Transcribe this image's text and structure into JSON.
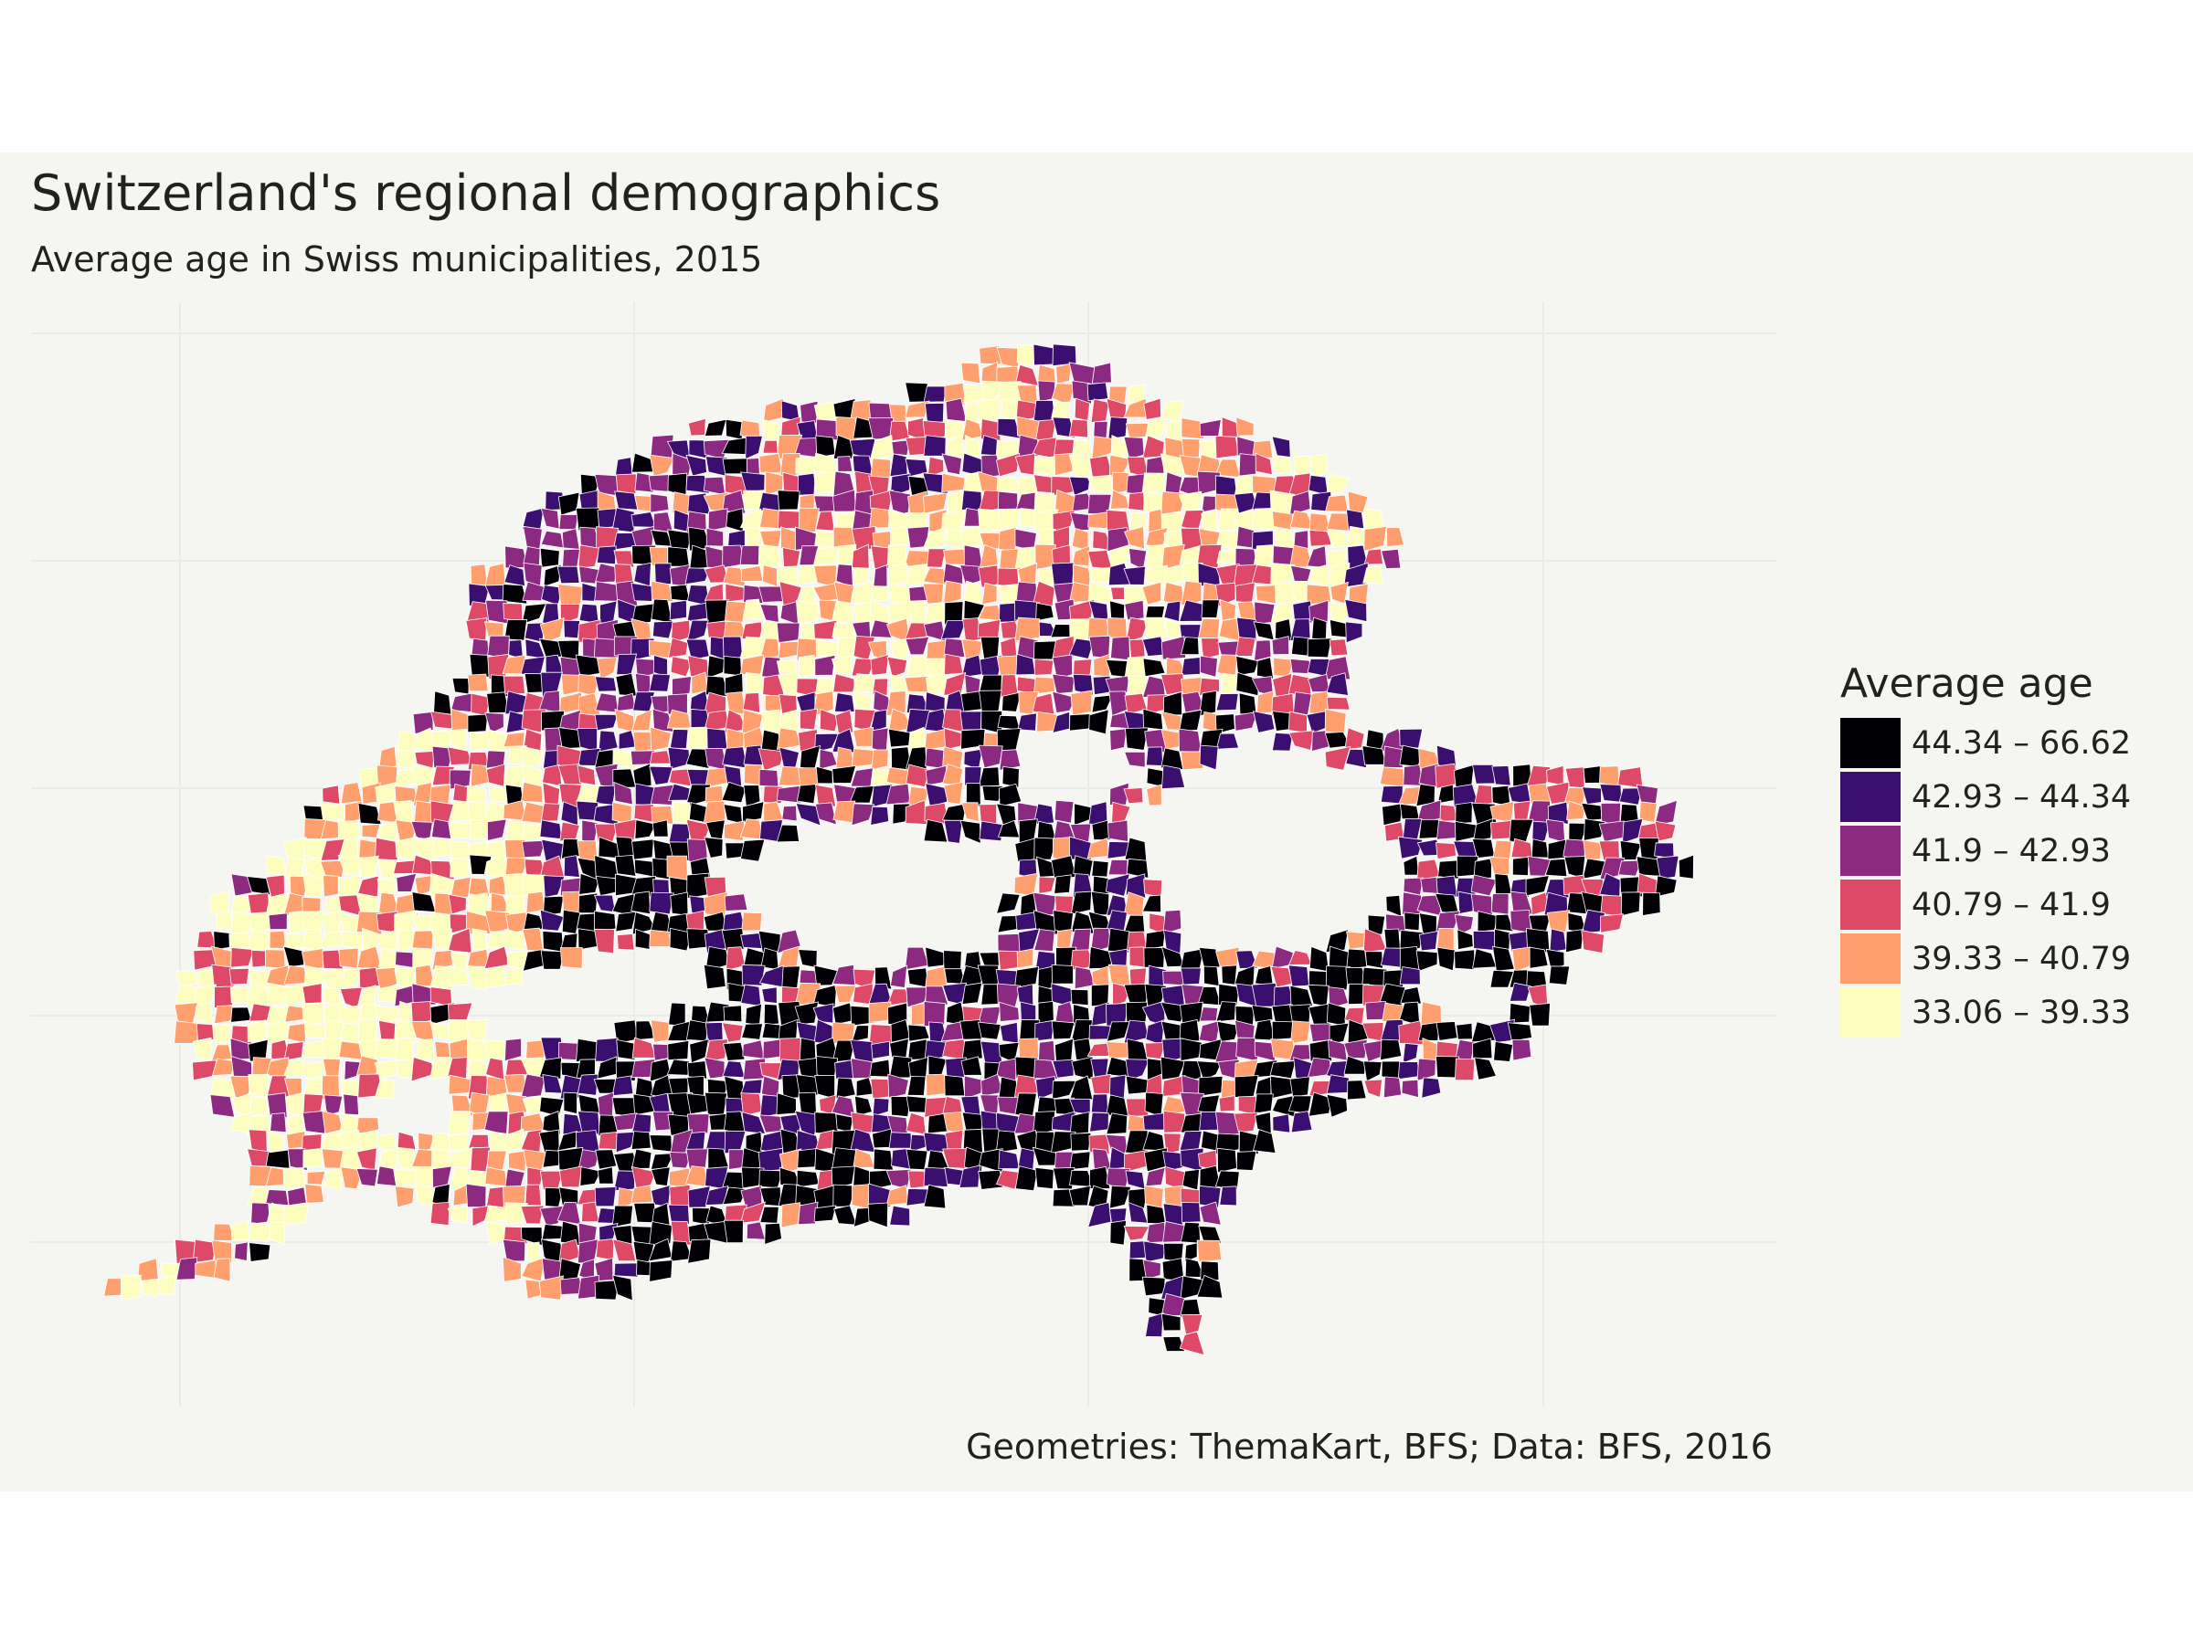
{
  "map": {
    "title": "Switzerland's regional demographics",
    "subtitle": "Average age in Swiss municipalities, 2015",
    "caption": "Geometries: ThemaKart, BFS; Data: BFS, 2016",
    "legend": {
      "title": "Average age",
      "classes": [
        {
          "label": "44.34 – 66.62",
          "color": "#000004"
        },
        {
          "label": "42.93 – 44.34",
          "color": "#3b0f70"
        },
        {
          "label": "41.9 – 42.93",
          "color": "#8c2981"
        },
        {
          "label": "40.79 – 41.9",
          "color": "#de4968"
        },
        {
          "label": "39.33 – 40.79",
          "color": "#fe9f6d"
        },
        {
          "label": "33.06 – 39.33",
          "color": "#fcfdbf"
        }
      ]
    },
    "colors": {
      "background": "#f5f5f2",
      "gridline": "#ebebe5",
      "municipality_border": "#ffffff",
      "text": "#22211d"
    }
  }
}
